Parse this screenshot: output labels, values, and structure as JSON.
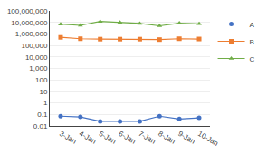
{
  "chart_data": {
    "type": "line",
    "categories": [
      "3-Jan",
      "4-Jan",
      "5-Jan",
      "6-Jan",
      "7-Jan",
      "8-Jan",
      "9-Jan",
      "10-Jan"
    ],
    "series": [
      {
        "name": "A",
        "color": "#4472C4",
        "marker": "circle",
        "values": [
          0.07,
          0.06,
          0.025,
          0.025,
          0.025,
          0.07,
          0.04,
          0.05
        ]
      },
      {
        "name": "B",
        "color": "#ED7D31",
        "marker": "square",
        "values": [
          500000,
          380000,
          350000,
          350000,
          350000,
          320000,
          380000,
          360000
        ]
      },
      {
        "name": "C",
        "color": "#70AD47",
        "marker": "triangle-up",
        "values": [
          7000000,
          5500000,
          12000000,
          10000000,
          8000000,
          5000000,
          8500000,
          7500000
        ]
      }
    ],
    "log": "y",
    "ylim": [
      0.01,
      100000000
    ],
    "yticks": [
      0.01,
      0.1,
      1,
      10,
      100,
      {
        "value": 1000,
        "label": "1,000"
      },
      {
        "value": 10000,
        "label": "10,000"
      },
      {
        "value": 100000,
        "label": "100,000"
      },
      {
        "value": 1000000,
        "label": "1,000,000"
      },
      {
        "value": 10000000,
        "label": "10,000,000"
      },
      {
        "value": 100000000,
        "label": "100,000,000"
      }
    ],
    "grid": true,
    "legend": "right"
  }
}
